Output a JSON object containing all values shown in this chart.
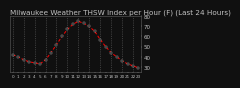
{
  "title": "Milwaukee Weather THSW Index per Hour (F) (Last 24 Hours)",
  "hours": [
    0,
    1,
    2,
    3,
    4,
    5,
    6,
    7,
    8,
    9,
    10,
    11,
    12,
    13,
    14,
    15,
    16,
    17,
    18,
    19,
    20,
    21,
    22,
    23
  ],
  "values": [
    42,
    40,
    37,
    35,
    34,
    33,
    37,
    44,
    52,
    60,
    67,
    72,
    75,
    73,
    70,
    65,
    57,
    50,
    44,
    40,
    36,
    33,
    31,
    29
  ],
  "ylim_min": 25,
  "ylim_max": 80,
  "bg_color": "#101010",
  "plot_bg": "#101010",
  "line_color": "#ff0000",
  "dot_color": "#000000",
  "dot_outline": "#c0c0c0",
  "grid_color": "#606060",
  "text_color": "#c0c0c0",
  "title_color": "#c0c0c0",
  "title_fontsize": 5.2,
  "tick_fontsize": 4.0,
  "ytick_vals": [
    30,
    40,
    50,
    60,
    70,
    80
  ],
  "xtick_vals": [
    0,
    1,
    2,
    3,
    4,
    5,
    6,
    7,
    8,
    9,
    10,
    11,
    12,
    13,
    14,
    15,
    16,
    17,
    18,
    19,
    20,
    21,
    22,
    23
  ],
  "vgrid_every": 2
}
